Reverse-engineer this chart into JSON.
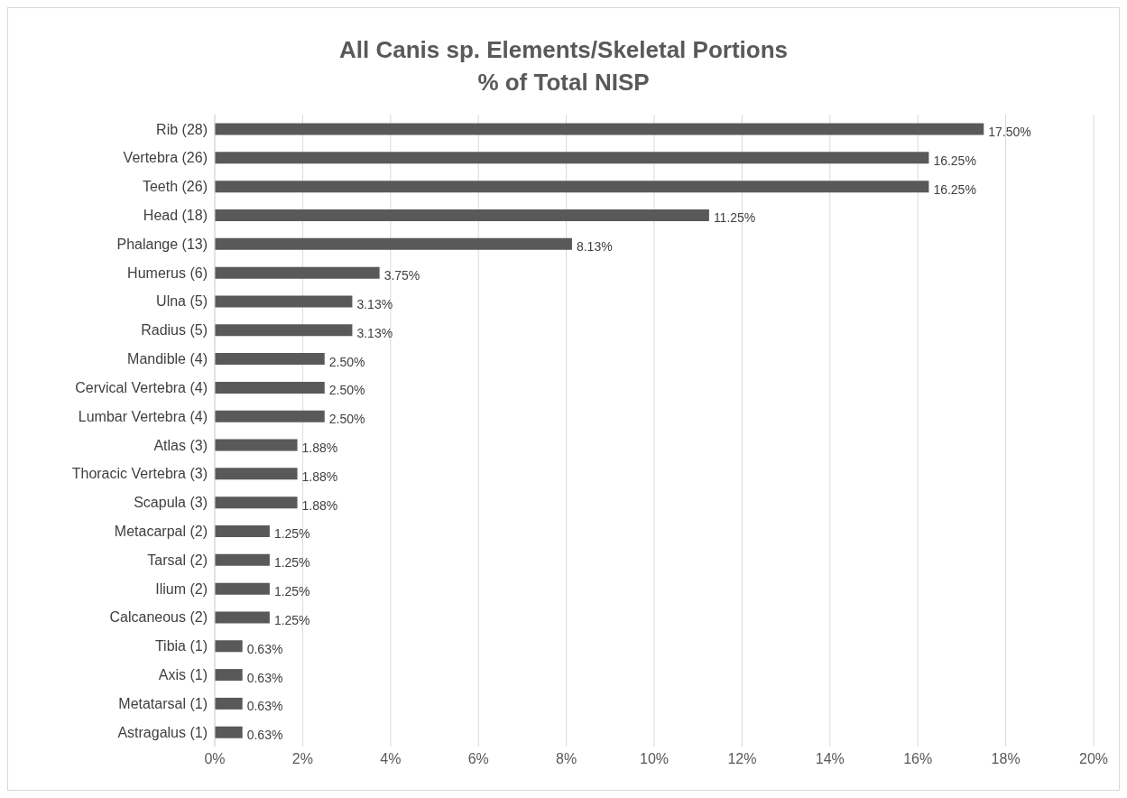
{
  "chart_data": {
    "type": "bar",
    "orientation": "horizontal",
    "title": "All Canis sp. Elements/Skeletal Portions\n% of Total NISP",
    "categories": [
      "Rib (28)",
      "Vertebra (26)",
      "Teeth (26)",
      "Head (18)",
      "Phalange (13)",
      "Humerus (6)",
      "Ulna (5)",
      "Radius (5)",
      "Mandible (4)",
      "Cervical Vertebra (4)",
      "Lumbar Vertebra (4)",
      "Atlas (3)",
      "Thoracic Vertebra (3)",
      "Scapula (3)",
      "Metacarpal (2)",
      "Tarsal (2)",
      "Ilium (2)",
      "Calcaneous (2)",
      "Tibia (1)",
      "Axis (1)",
      "Metatarsal (1)",
      "Astragalus (1)"
    ],
    "values": [
      17.5,
      16.25,
      16.25,
      11.25,
      8.13,
      3.75,
      3.13,
      3.13,
      2.5,
      2.5,
      2.5,
      1.88,
      1.88,
      1.88,
      1.25,
      1.25,
      1.25,
      1.25,
      0.63,
      0.63,
      0.63,
      0.63
    ],
    "value_labels": [
      "17.50%",
      "16.25%",
      "16.25%",
      "11.25%",
      "8.13%",
      "3.75%",
      "3.13%",
      "3.13%",
      "2.50%",
      "2.50%",
      "2.50%",
      "1.88%",
      "1.88%",
      "1.88%",
      "1.25%",
      "1.25%",
      "1.25%",
      "1.25%",
      "0.63%",
      "0.63%",
      "0.63%",
      "0.63%"
    ],
    "color": "#595959",
    "xlim": [
      0,
      20
    ],
    "xticks": [
      {
        "value": 0,
        "label": "0%"
      },
      {
        "value": 2,
        "label": "2%"
      },
      {
        "value": 4,
        "label": "4%"
      },
      {
        "value": 6,
        "label": "6%"
      },
      {
        "value": 8,
        "label": "8%"
      },
      {
        "value": 10,
        "label": "10%"
      },
      {
        "value": 12,
        "label": "12%"
      },
      {
        "value": 14,
        "label": "14%"
      },
      {
        "value": 16,
        "label": "16%"
      },
      {
        "value": 18,
        "label": "18%"
      },
      {
        "value": 20,
        "label": "20%"
      }
    ],
    "grid": "x"
  }
}
